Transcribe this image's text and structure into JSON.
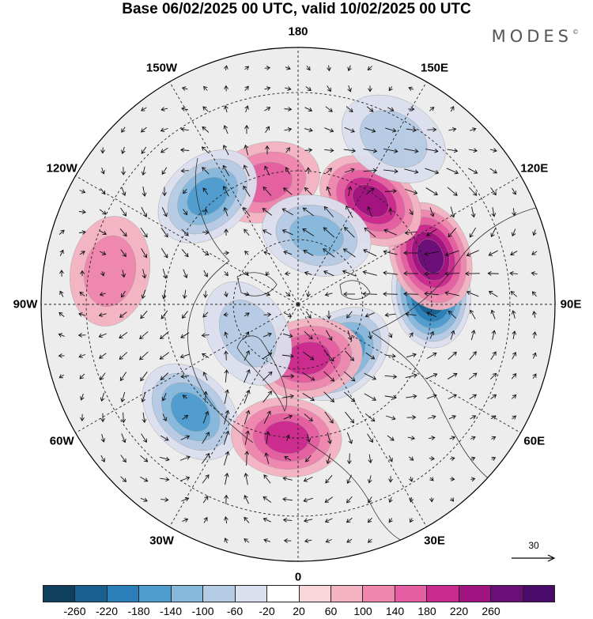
{
  "title": "Base 06/02/2025 00 UTC, valid 10/02/2025 00 UTC",
  "brand": "MODES",
  "brand_mark": "©",
  "map": {
    "projection": "north polar stereographic",
    "longitude_labels": [
      {
        "text": "180",
        "lon": 180
      },
      {
        "text": "150E",
        "lon": 150
      },
      {
        "text": "120E",
        "lon": 120
      },
      {
        "text": "90E",
        "lon": 90
      },
      {
        "text": "60E",
        "lon": 60
      },
      {
        "text": "30E",
        "lon": 30
      },
      {
        "text": "0",
        "lon": 0
      },
      {
        "text": "30W",
        "lon": -30
      },
      {
        "text": "60W",
        "lon": -60
      },
      {
        "text": "90W",
        "lon": -90
      },
      {
        "text": "120W",
        "lon": -120
      },
      {
        "text": "150W",
        "lon": -150
      }
    ],
    "anomalies": [
      {
        "lon": 95,
        "lat": 50,
        "value": -260
      },
      {
        "lon": 110,
        "lat": 48,
        "value": 240
      },
      {
        "lon": 145,
        "lat": 52,
        "value": 180
      },
      {
        "lon": 40,
        "lat": 70,
        "value": -180
      },
      {
        "lon": 10,
        "lat": 73,
        "value": 140
      },
      {
        "lon": -165,
        "lat": 52,
        "value": 120
      },
      {
        "lon": 165,
        "lat": 68,
        "value": -120
      },
      {
        "lon": -140,
        "lat": 48,
        "value": -140
      },
      {
        "lon": -45,
        "lat": 45,
        "value": -140
      },
      {
        "lon": -5,
        "lat": 50,
        "value": 140
      },
      {
        "lon": -60,
        "lat": 72,
        "value": -60
      },
      {
        "lon": 150,
        "lat": 35,
        "value": -80
      },
      {
        "lon": -100,
        "lat": 35,
        "value": 60
      }
    ],
    "reference_vector": {
      "value": "30"
    }
  },
  "colorbar": {
    "colors": [
      "#0e3f5d",
      "#17608f",
      "#2a7fb8",
      "#4f9ccf",
      "#86b8dc",
      "#b6cbe4",
      "#dcdfee",
      "#ffffff",
      "#f8d6d9",
      "#f4b3c2",
      "#ee86ad",
      "#e45ea1",
      "#ca2a8d",
      "#a11380",
      "#6b0f78",
      "#4a0a6a"
    ],
    "ticks": [
      "-260",
      "-220",
      "-180",
      "-140",
      "-100",
      "-60",
      "-20",
      "20",
      "60",
      "100",
      "140",
      "180",
      "220",
      "260"
    ]
  }
}
